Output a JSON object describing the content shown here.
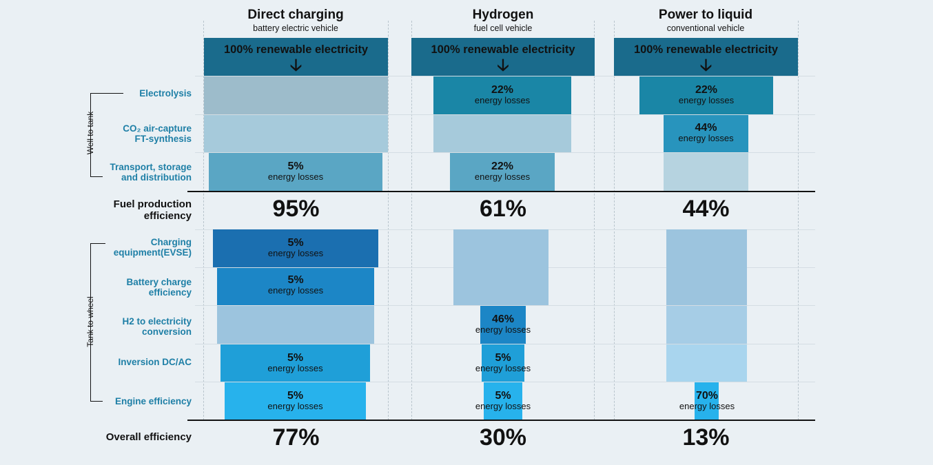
{
  "columns": [
    {
      "title": "Direct charging",
      "subtitle": "battery electric vehicle",
      "renewable": "100% renewable electricity",
      "fuel_production": "95%",
      "overall": "77%"
    },
    {
      "title": "Hydrogen",
      "subtitle": "fuel cell vehicle",
      "renewable": "100% renewable electricity",
      "fuel_production": "61%",
      "overall": "30%"
    },
    {
      "title": "Power to liquid",
      "subtitle": "conventional vehicle",
      "renewable": "100% renewable electricity",
      "fuel_production": "44%",
      "overall": "13%"
    }
  ],
  "groups": {
    "well_to_tank": "Well to tank",
    "tank_to_wheel": "Tank to wheel"
  },
  "rows": {
    "electrolysis": "Electrolysis",
    "co2_line1": "CO₂ air-capture",
    "co2_line2": "FT-synthesis",
    "transport_line1": "Transport, storage",
    "transport_line2": "and distribution",
    "fuel_line1": "Fuel production",
    "fuel_line2": "efficiency",
    "charging_line1": "Charging",
    "charging_line2": "equipment(EVSE)",
    "battery_line1": "Battery charge",
    "battery_line2": "efficiency",
    "h2_line1": "H2 to electricity",
    "h2_line2": "conversion",
    "inversion": "Inversion DC/AC",
    "engine": "Engine efficiency",
    "overall": "Overall efficiency"
  },
  "loss_label": "energy losses",
  "losses": {
    "direct": {
      "transport": "5%",
      "charging": "5%",
      "battery": "5%",
      "inversion": "5%",
      "engine": "5%"
    },
    "hydrogen": {
      "electrolysis": "22%",
      "transport": "22%",
      "h2": "46%",
      "inversion": "5%",
      "engine": "5%"
    },
    "ptl": {
      "electrolysis": "22%",
      "co2": "44%",
      "engine": "70%"
    }
  },
  "colors": {
    "background": "#eaf0f4",
    "header": "#1a6b8c",
    "electrolysis": "#1a86a6",
    "grey_blue": "#9dbccb",
    "light_blue": "#a6cadb",
    "transport": "#5aa6c4",
    "charging": "#1b6fb0",
    "battery": "#1c86c6",
    "tank_light": "#9cc4de",
    "inversion": "#1f9fd8",
    "engine": "#27b2ec"
  }
}
